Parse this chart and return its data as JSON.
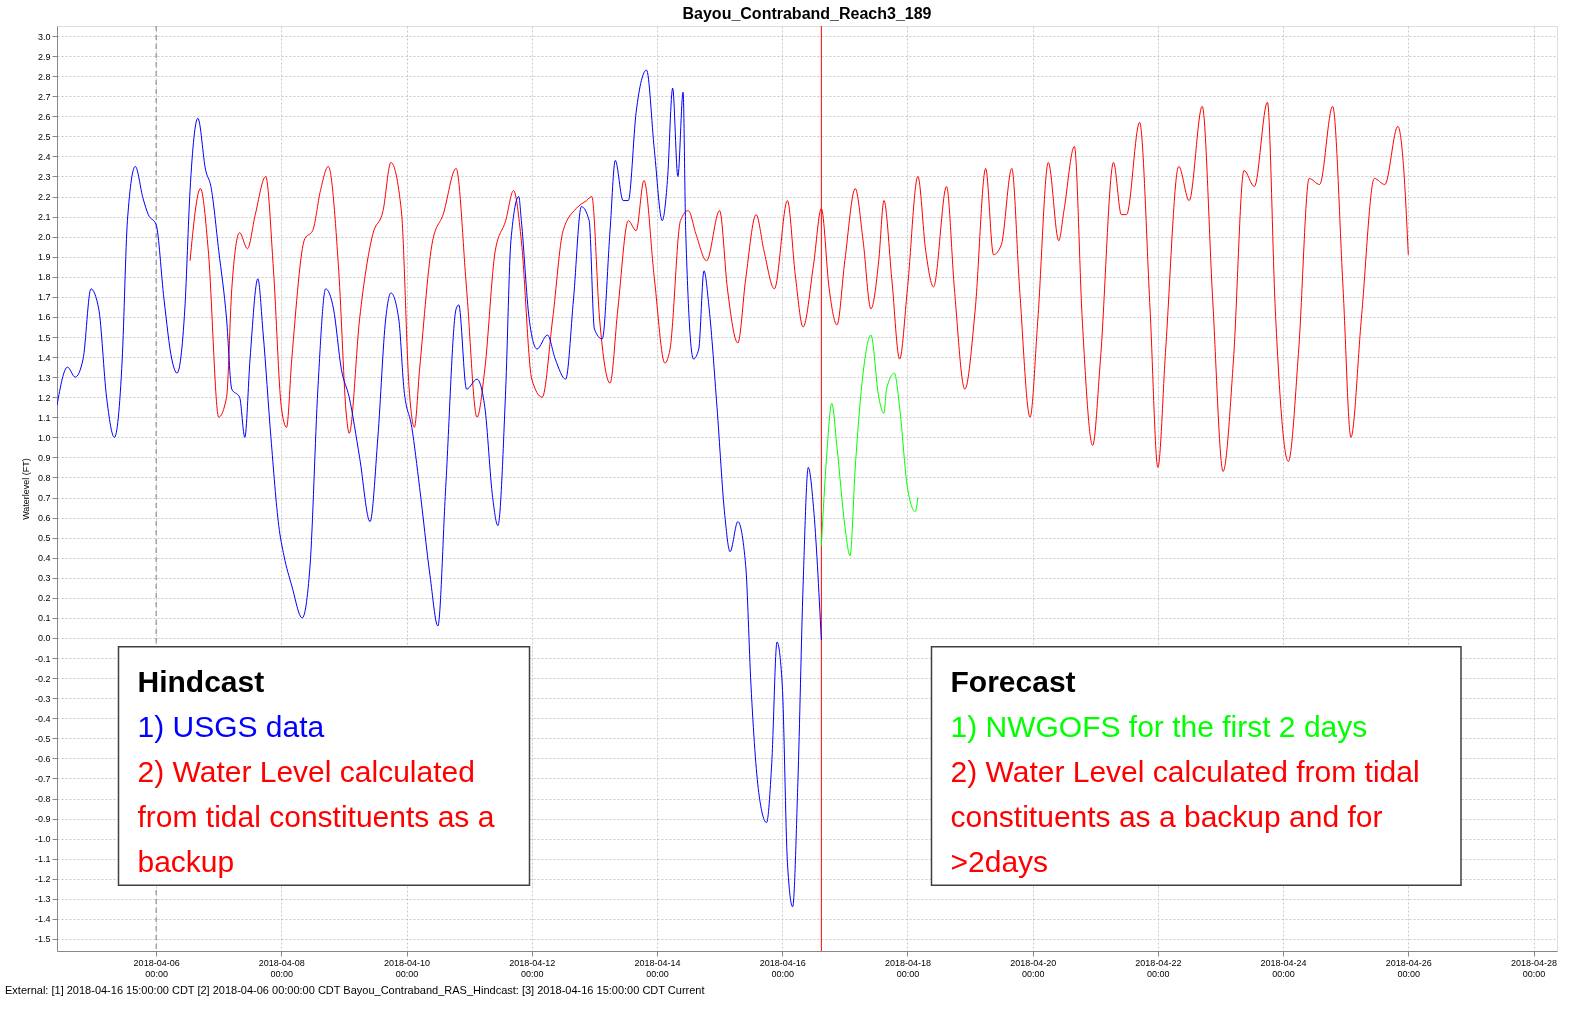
{
  "chart_data": {
    "type": "line",
    "title": "Bayou_Contraband_Reach3_189",
    "ylabel": "Waterlevel (FT)",
    "xlim": [
      "2018-04-04T10:00",
      "2018-04-28T09:00"
    ],
    "ylim": [
      -1.56,
      3.05
    ],
    "xticks": [
      {
        "value": "2018-04-06",
        "label": "2018-04-06\n00:00"
      },
      {
        "value": "2018-04-08",
        "label": "2018-04-08\n00:00"
      },
      {
        "value": "2018-04-10",
        "label": "2018-04-10\n00:00"
      },
      {
        "value": "2018-04-12",
        "label": "2018-04-12\n00:00"
      },
      {
        "value": "2018-04-14",
        "label": "2018-04-14\n00:00"
      },
      {
        "value": "2018-04-16",
        "label": "2018-04-16\n00:00"
      },
      {
        "value": "2018-04-18",
        "label": "2018-04-18\n00:00"
      },
      {
        "value": "2018-04-20",
        "label": "2018-04-20\n00:00"
      },
      {
        "value": "2018-04-22",
        "label": "2018-04-22\n00:00"
      },
      {
        "value": "2018-04-24",
        "label": "2018-04-24\n00:00"
      },
      {
        "value": "2018-04-26",
        "label": "2018-04-26\n00:00"
      },
      {
        "value": "2018-04-28",
        "label": "2018-04-28\n00:00"
      }
    ],
    "yticks": [
      -1.5,
      -1.4,
      -1.3,
      -1.2,
      -1.1,
      {
        "value": -1,
        "label": "-1.0"
      },
      -0.9,
      -0.8,
      -0.7,
      -0.6,
      -0.5,
      -0.4,
      -0.3,
      -0.2,
      -0.1,
      {
        "value": 0,
        "label": "0.0"
      },
      0.1,
      0.2,
      0.3,
      0.4,
      0.5,
      0.6,
      0.7,
      0.8,
      0.9,
      {
        "value": 1,
        "label": "1.0"
      },
      1.1,
      1.2,
      1.3,
      1.4,
      1.5,
      1.6,
      1.7,
      1.8,
      1.9,
      {
        "value": 2,
        "label": "2.0"
      },
      2.1,
      2.2,
      2.3,
      2.4,
      2.5,
      2.6,
      2.7,
      2.8,
      2.9,
      {
        "value": 3,
        "label": "3.0"
      }
    ],
    "grid": true,
    "legend": false,
    "marker": "none",
    "line_style": "solid",
    "series": [
      {
        "color": "#ff0000",
        "x": [
          "2018-04-06T13:00",
          "2018-04-06T17:00",
          "2018-04-06T20:00",
          "2018-04-07T00:00",
          "2018-04-07T03:00",
          "2018-04-07T05:00",
          "2018-04-07T08:00",
          "2018-04-07T11:00",
          "2018-04-07T14:00",
          "2018-04-07T18:00",
          "2018-04-07T21:00",
          "2018-04-08T00:00",
          "2018-04-08T02:00",
          "2018-04-08T04:00",
          "2018-04-08T09:00",
          "2018-04-08T12:00",
          "2018-04-08T15:00",
          "2018-04-08T18:00",
          "2018-04-08T22:00",
          "2018-04-09T01:00",
          "2018-04-09T02:00",
          "2018-04-09T06:00",
          "2018-04-09T11:00",
          "2018-04-09T15:00",
          "2018-04-09T18:00",
          "2018-04-09T22:00",
          "2018-04-10T01:00",
          "2018-04-10T03:00",
          "2018-04-10T05:00",
          "2018-04-10T10:00",
          "2018-04-10T14:00",
          "2018-04-10T19:00",
          "2018-04-10T23:00",
          "2018-04-11T03:00",
          "2018-04-11T06:00",
          "2018-04-11T10:00",
          "2018-04-11T14:00",
          "2018-04-11T17:00",
          "2018-04-11T20:00",
          "2018-04-12T00:00",
          "2018-04-12T04:00",
          "2018-04-12T08:00",
          "2018-04-12T12:00",
          "2018-04-12T17:00",
          "2018-04-12T21:00",
          "2018-04-12T23:00",
          "2018-04-13T02:00",
          "2018-04-13T06:00",
          "2018-04-13T09:00",
          "2018-04-13T13:00",
          "2018-04-13T16:00",
          "2018-04-13T19:00",
          "2018-04-13T23:00",
          "2018-04-14T03:00",
          "2018-04-14T05:00",
          "2018-04-14T09:00",
          "2018-04-14T12:00",
          "2018-04-14T15:00",
          "2018-04-14T19:00",
          "2018-04-15T00:00",
          "2018-04-15T03:00",
          "2018-04-15T07:00",
          "2018-04-15T10:00",
          "2018-04-15T14:00",
          "2018-04-15T17:00",
          "2018-04-15T21:00",
          "2018-04-16T02:00",
          "2018-04-16T05:00",
          "2018-04-16T08:00",
          "2018-04-16T12:00",
          "2018-04-16T15:00",
          "2018-04-16T18:00",
          "2018-04-16T21:00",
          "2018-04-17T00:00",
          "2018-04-17T04:00",
          "2018-04-17T07:00",
          "2018-04-17T10:00",
          "2018-04-17T13:00",
          "2018-04-17T15:00",
          "2018-04-17T18:00",
          "2018-04-17T21:00",
          "2018-04-18T00:00",
          "2018-04-18T04:00",
          "2018-04-18T07:00",
          "2018-04-18T10:00",
          "2018-04-18T15:00",
          "2018-04-18T18:00",
          "2018-04-18T22:00",
          "2018-04-19T02:00",
          "2018-04-19T06:00",
          "2018-04-19T09:00",
          "2018-04-19T12:00",
          "2018-04-19T16:00",
          "2018-04-19T19:00",
          "2018-04-19T23:00",
          "2018-04-20T02:00",
          "2018-04-20T06:00",
          "2018-04-20T10:00",
          "2018-04-20T12:00",
          "2018-04-20T16:00",
          "2018-04-20T19:00",
          "2018-04-20T23:00",
          "2018-04-21T02:00",
          "2018-04-21T07:00",
          "2018-04-21T10:00",
          "2018-04-21T12:00",
          "2018-04-21T17:00",
          "2018-04-21T21:00",
          "2018-04-22T00:00",
          "2018-04-22T03:00",
          "2018-04-22T08:00",
          "2018-04-22T12:00",
          "2018-04-22T17:00",
          "2018-04-22T21:00",
          "2018-04-23T01:00",
          "2018-04-23T05:00",
          "2018-04-23T09:00",
          "2018-04-23T13:00",
          "2018-04-23T18:00",
          "2018-04-23T21:00",
          "2018-04-24T02:00",
          "2018-04-24T06:00",
          "2018-04-24T10:00",
          "2018-04-24T14:00",
          "2018-04-24T19:00",
          "2018-04-24T23:00",
          "2018-04-25T02:00",
          "2018-04-25T06:00",
          "2018-04-25T11:00",
          "2018-04-25T15:00",
          "2018-04-25T20:00",
          "2018-04-25T22:00",
          "2018-04-26T00:00"
        ],
        "values": [
          1.88,
          2.24,
          1.93,
          1.1,
          1.2,
          1.74,
          2.02,
          1.94,
          2.11,
          2.3,
          1.83,
          1.15,
          1.05,
          1.39,
          1.99,
          2.03,
          2.23,
          2.35,
          1.83,
          1.1,
          1.02,
          1.59,
          2.01,
          2.13,
          2.37,
          2.13,
          1.24,
          1.05,
          1.34,
          1.98,
          2.11,
          2.34,
          1.74,
          1.1,
          1.34,
          1.93,
          2.08,
          2.23,
          1.98,
          1.29,
          1.2,
          1.59,
          2.03,
          2.14,
          2.18,
          2.2,
          1.59,
          1.27,
          1.64,
          2.08,
          2.03,
          2.28,
          1.79,
          1.37,
          1.44,
          2.08,
          2.13,
          2.01,
          1.88,
          2.13,
          1.74,
          1.47,
          1.79,
          2.11,
          1.93,
          1.74,
          2.18,
          1.81,
          1.55,
          1.86,
          2.14,
          1.74,
          1.56,
          1.88,
          2.24,
          1.98,
          1.64,
          1.88,
          2.18,
          1.79,
          1.39,
          1.74,
          2.3,
          1.93,
          1.75,
          2.25,
          1.74,
          1.24,
          1.64,
          2.34,
          1.91,
          1.96,
          2.34,
          1.74,
          1.1,
          1.59,
          2.37,
          1.98,
          2.13,
          2.45,
          1.59,
          0.96,
          1.39,
          2.37,
          2.11,
          2.11,
          2.57,
          1.64,
          0.85,
          1.44,
          2.35,
          2.18,
          2.65,
          1.69,
          0.83,
          1.39,
          2.33,
          2.25,
          2.67,
          1.64,
          0.88,
          1.44,
          2.29,
          2.26,
          2.65,
          1.74,
          1.0,
          1.59,
          2.29,
          2.26,
          2.55,
          2.38,
          1.91
        ]
      },
      {
        "color": "#0000ff",
        "x": [
          "2018-04-04T10:00",
          "2018-04-04T14:00",
          "2018-04-04T17:00",
          "2018-04-04T20:00",
          "2018-04-04T23:00",
          "2018-04-05T02:00",
          "2018-04-05T05:00",
          "2018-04-05T08:00",
          "2018-04-05T11:00",
          "2018-04-05T13:00",
          "2018-04-05T16:00",
          "2018-04-05T19:00",
          "2018-04-05T21:00",
          "2018-04-06T00:00",
          "2018-04-06T03:00",
          "2018-04-06T06:00",
          "2018-04-06T08:00",
          "2018-04-06T11:00",
          "2018-04-06T13:00",
          "2018-04-06T16:00",
          "2018-04-06T19:00",
          "2018-04-06T21:00",
          "2018-04-07T00:00",
          "2018-04-07T03:00",
          "2018-04-07T05:00",
          "2018-04-07T08:00",
          "2018-04-07T10:00",
          "2018-04-07T12:00",
          "2018-04-07T15:00",
          "2018-04-07T17:00",
          "2018-04-07T20:00",
          "2018-04-07T23:00",
          "2018-04-08T01:00",
          "2018-04-08T04:00",
          "2018-04-08T08:00",
          "2018-04-08T11:00",
          "2018-04-08T14:00",
          "2018-04-08T17:00",
          "2018-04-08T20:00",
          "2018-04-08T23:00",
          "2018-04-09T02:00",
          "2018-04-09T06:00",
          "2018-04-09T10:00",
          "2018-04-09T13:00",
          "2018-04-09T16:00",
          "2018-04-09T18:00",
          "2018-04-09T21:00",
          "2018-04-09T23:00",
          "2018-04-10T02:00",
          "2018-04-10T05:00",
          "2018-04-10T09:00",
          "2018-04-10T12:00",
          "2018-04-10T15:00",
          "2018-04-10T19:00",
          "2018-04-10T20:00",
          "2018-04-10T23:00",
          "2018-04-11T03:00",
          "2018-04-11T06:00",
          "2018-04-11T09:00",
          "2018-04-11T11:00",
          "2018-04-11T14:00",
          "2018-04-11T16:00",
          "2018-04-11T19:00",
          "2018-04-11T20:00",
          "2018-04-11T23:00",
          "2018-04-12T02:00",
          "2018-04-12T06:00",
          "2018-04-12T09:00",
          "2018-04-12T13:00",
          "2018-04-12T16:00",
          "2018-04-12T19:00",
          "2018-04-12T22:00",
          "2018-04-13T00:00",
          "2018-04-13T03:00",
          "2018-04-13T06:00",
          "2018-04-13T08:00",
          "2018-04-13T11:00",
          "2018-04-13T13:00",
          "2018-04-13T16:00",
          "2018-04-13T20:00",
          "2018-04-13T23:00",
          "2018-04-14T02:00",
          "2018-04-14T04:00",
          "2018-04-14T06:00",
          "2018-04-14T08:00",
          "2018-04-14T10:00",
          "2018-04-14T11:00",
          "2018-04-14T14:00",
          "2018-04-14T16:00",
          "2018-04-14T18:00",
          "2018-04-14T20:00",
          "2018-04-14T23:00",
          "2018-04-15T02:00",
          "2018-04-15T04:00",
          "2018-04-15T07:00",
          "2018-04-15T10:00",
          "2018-04-15T12:00",
          "2018-04-15T15:00",
          "2018-04-15T18:00",
          "2018-04-15T20:00",
          "2018-04-15T22:00",
          "2018-04-16T00:00",
          "2018-04-16T02:00",
          "2018-04-16T04:00",
          "2018-04-16T06:00",
          "2018-04-16T08:00",
          "2018-04-16T10:00",
          "2018-04-16T12:00",
          "2018-04-16T15:00"
        ],
        "values": [
          1.16,
          1.35,
          1.3,
          1.39,
          1.74,
          1.64,
          1.2,
          1.0,
          1.39,
          2.08,
          2.35,
          2.19,
          2.11,
          2.06,
          1.69,
          1.39,
          1.32,
          1.64,
          2.23,
          2.59,
          2.33,
          2.25,
          1.93,
          1.59,
          1.24,
          1.2,
          1.0,
          1.39,
          1.79,
          1.52,
          1.0,
          0.56,
          0.41,
          0.26,
          0.1,
          0.36,
          1.24,
          1.74,
          1.64,
          1.34,
          1.2,
          0.9,
          0.58,
          1.0,
          1.59,
          1.72,
          1.59,
          1.24,
          1.05,
          0.75,
          0.31,
          0.06,
          0.75,
          1.64,
          1.66,
          1.24,
          1.29,
          1.15,
          0.7,
          0.56,
          1.24,
          1.98,
          2.2,
          2.08,
          1.59,
          1.44,
          1.51,
          1.39,
          1.29,
          1.69,
          2.15,
          2.08,
          1.54,
          1.49,
          2.03,
          2.38,
          2.18,
          2.18,
          2.62,
          2.83,
          2.43,
          2.08,
          2.28,
          2.74,
          2.3,
          2.72,
          2.03,
          1.39,
          1.44,
          1.83,
          1.64,
          1.15,
          0.61,
          0.43,
          0.58,
          0.36,
          -0.23,
          -0.77,
          -0.92,
          -0.62,
          -0.02,
          -0.23,
          -1.12,
          -1.34,
          -0.72,
          0.26,
          0.85,
          0.65,
          -0.01
        ]
      },
      {
        "color": "#00ff00",
        "x": [
          "2018-04-16T15:00",
          "2018-04-16T17:00",
          "2018-04-16T19:00",
          "2018-04-16T21:00",
          "2018-04-17T00:00",
          "2018-04-17T02:00",
          "2018-04-17T04:00",
          "2018-04-17T07:00",
          "2018-04-17T10:00",
          "2018-04-17T13:00",
          "2018-04-17T15:00",
          "2018-04-17T16:00",
          "2018-04-17T19:00",
          "2018-04-17T21:00",
          "2018-04-18T00:00",
          "2018-04-18T03:00",
          "2018-04-18T04:00"
        ],
        "values": [
          0.46,
          0.9,
          1.17,
          0.95,
          0.56,
          0.41,
          0.85,
          1.32,
          1.51,
          1.2,
          1.12,
          1.24,
          1.32,
          1.15,
          0.75,
          0.63,
          0.7
        ]
      }
    ],
    "ref_lines": [
      {
        "axis": "x",
        "value": "2018-04-16T15:00",
        "color": "#ff0000",
        "line_style": "solid"
      },
      {
        "axis": "x",
        "value": "2018-04-06T00:00",
        "color": "#808080",
        "line_style": "dashed"
      }
    ],
    "annotations": [
      "Hindcast",
      "1) USGS data",
      "2) Water Level calculated from tidal constituents as a backup",
      "Forecast",
      "1) NWGOFS for the first 2 days",
      "2) Water Level calculated from tidal constituents as a backup and for >2days",
      "External: [1] 2018-04-16 15:00:00 CDT [2] 2018-04-06 00:00:00 CDT Bayou_Contraband_RAS_Hindcast: [3] 2018-04-16 15:00:00 CDT Current"
    ]
  }
}
